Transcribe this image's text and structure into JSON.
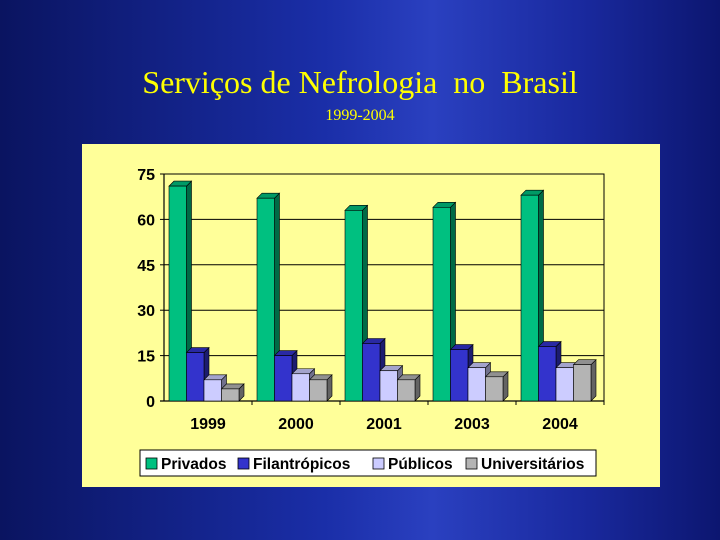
{
  "slide": {
    "title": "Serviços de Nefrologia  no  Brasil",
    "subtitle": "1999-2004"
  },
  "chart_data": {
    "type": "bar",
    "categories": [
      "1999",
      "2000",
      "2001",
      "2003",
      "2004"
    ],
    "series": [
      {
        "name": "Privados",
        "values": [
          71,
          67,
          63,
          64,
          68
        ],
        "color": "#00c080"
      },
      {
        "name": "Filantrópicos",
        "values": [
          16,
          15,
          19,
          17,
          18
        ],
        "color": "#3333cc"
      },
      {
        "name": "Públicos",
        "values": [
          7,
          9,
          10,
          11,
          11
        ],
        "color": "#ccccff"
      },
      {
        "name": "Universitários",
        "values": [
          4,
          7,
          7,
          8,
          12
        ],
        "color": "#b4b4b4"
      }
    ],
    "ylim": [
      0,
      75
    ],
    "yticks": [
      0,
      15,
      30,
      45,
      60,
      75
    ],
    "grid": true,
    "legend": "bottom",
    "background": "#ffff99"
  }
}
